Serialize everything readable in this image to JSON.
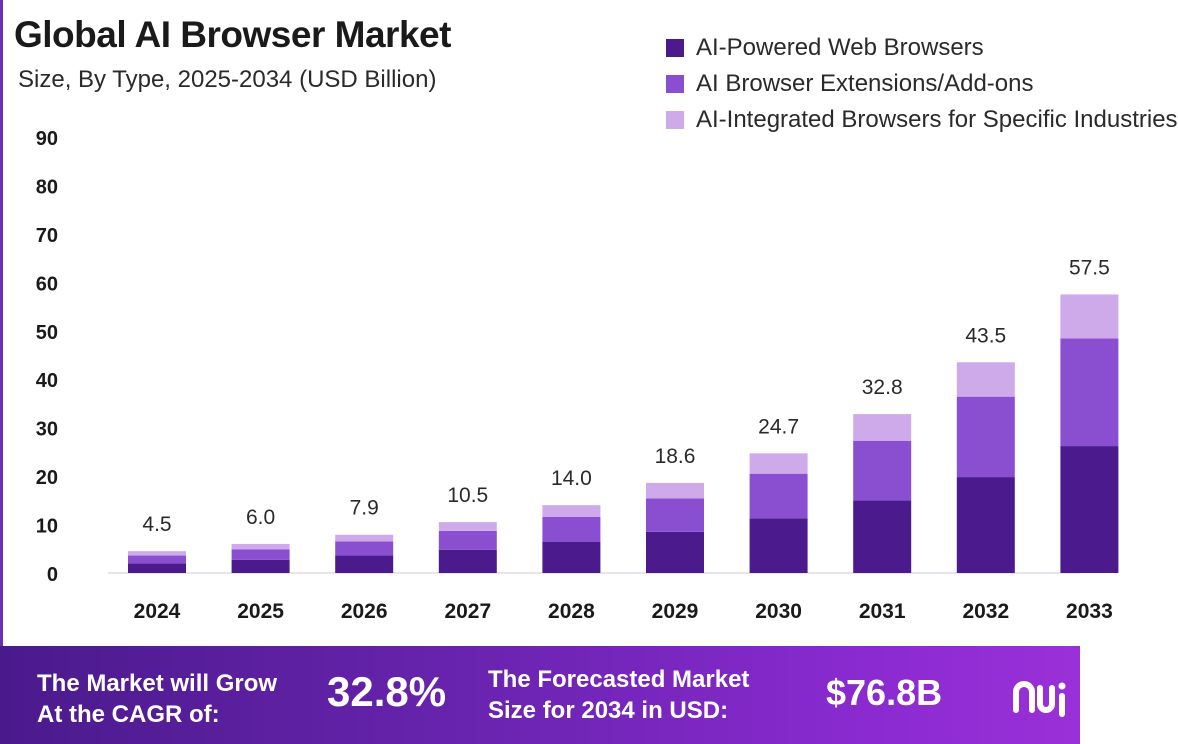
{
  "title": "Global AI Browser Market",
  "subtitle": "Size, By Type, 2025-2034 (USD Billion)",
  "legend": [
    {
      "label": "AI-Powered Web Browsers",
      "color": "#4b1a8c"
    },
    {
      "label": "AI Browser Extensions/Add-ons",
      "color": "#8a4fd0"
    },
    {
      "label": "AI-Integrated Browsers for Specific Industries",
      "color": "#cfaaeb"
    }
  ],
  "chart_data": {
    "type": "bar",
    "stacked": true,
    "title": "Global AI Browser Market",
    "subtitle": "Size, By Type, 2025-2034 (USD Billion)",
    "categories": [
      "2024",
      "2025",
      "2026",
      "2027",
      "2028",
      "2029",
      "2030",
      "2031",
      "2032",
      "2033"
    ],
    "series": [
      {
        "name": "AI-Powered Web Browsers",
        "color": "#4b1a8c",
        "values": [
          2.0,
          2.7,
          3.6,
          4.8,
          6.4,
          8.5,
          11.3,
          15.0,
          19.8,
          26.2
        ]
      },
      {
        "name": "AI Browser Extensions/Add-ons",
        "color": "#8a4fd0",
        "values": [
          1.6,
          2.2,
          2.9,
          3.9,
          5.2,
          6.9,
          9.2,
          12.3,
          16.6,
          22.2
        ]
      },
      {
        "name": "AI-Integrated Browsers for Specific Industries",
        "color": "#cfaaeb",
        "values": [
          0.9,
          1.1,
          1.4,
          1.8,
          2.4,
          3.2,
          4.2,
          5.5,
          7.1,
          9.1
        ]
      }
    ],
    "totals": [
      "4.5",
      "6.0",
      "7.9",
      "10.5",
      "14.0",
      "18.6",
      "24.7",
      "32.8",
      "43.5",
      "57.5"
    ],
    "yticks": [
      "0",
      "10",
      "20",
      "30",
      "40",
      "50",
      "60",
      "70",
      "80",
      "90"
    ],
    "ylim": [
      0,
      90
    ],
    "xlabel": "",
    "ylabel": "",
    "grid": false
  },
  "banner": {
    "cagr_label_line1": "The Market will Grow",
    "cagr_label_line2": "At the CAGR of:",
    "cagr_value": "32.8%",
    "forecast_label_line1": "The Forecasted Market",
    "forecast_label_line2": "Size for 2034 in USD:",
    "forecast_value": "$76.8B"
  },
  "colors": {
    "banner_start": "#4a1a8c",
    "banner_end": "#9a30d8",
    "border": "#6b2fb3"
  },
  "logo_icon": "brand-logo-icon"
}
